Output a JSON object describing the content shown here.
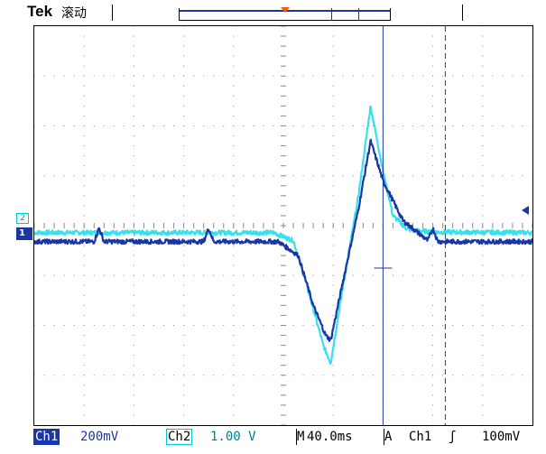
{
  "header": {
    "brand": "Tek",
    "mode": "滚动"
  },
  "status_bar": {
    "ch1_label": "Ch1",
    "ch1_scale": "200mV",
    "ch2_label": "Ch2",
    "ch2_scale": "1.00 V",
    "timebase_prefix": "M",
    "timebase": "40.0ms",
    "trigger_prefix": "A",
    "trigger_source": "Ch1",
    "trigger_slope": "ʃ",
    "trigger_level": "100mV"
  },
  "markers": {
    "ch1": "1",
    "ch2": "2"
  },
  "colors": {
    "ch1": "#1a35a6",
    "ch2": "#35e1ee",
    "trigger_pos": "#ff5a00",
    "grid": "#8c8c8c"
  },
  "chart_data": {
    "type": "line",
    "xlabel": "",
    "ylabel": "",
    "grid": true,
    "x_divisions": 10,
    "y_divisions": 8,
    "x_unit": "div",
    "y_unit": "div",
    "x_range": [
      -5,
      5
    ],
    "y_range": [
      -4,
      4
    ],
    "series": [
      {
        "name": "Ch2",
        "x": [
          -5,
          -3.6,
          -3.5,
          -3.4,
          -0.2,
          0.2,
          0.5,
          0.8,
          0.95,
          1.2,
          1.5,
          1.75,
          2.0,
          2.2,
          2.5,
          3.0,
          5
        ],
        "y": [
          -0.14,
          -0.14,
          -0.14,
          -0.14,
          -0.14,
          -0.3,
          -1.3,
          -2.4,
          -2.75,
          -1.2,
          0.55,
          2.4,
          1.1,
          0.2,
          -0.08,
          -0.13,
          -0.14
        ]
      },
      {
        "name": "Ch1",
        "x": [
          -5,
          -3.8,
          -3.7,
          -3.6,
          -1.6,
          -1.5,
          -1.4,
          -0.1,
          0.3,
          0.6,
          0.85,
          0.95,
          1.2,
          1.5,
          1.75,
          2.0,
          2.4,
          2.9,
          3.0,
          3.1,
          5
        ],
        "y": [
          -0.32,
          -0.32,
          -0.05,
          -0.32,
          -0.32,
          -0.05,
          -0.32,
          -0.32,
          -0.6,
          -1.6,
          -2.2,
          -2.3,
          -1.1,
          0.3,
          1.7,
          0.9,
          0.1,
          -0.3,
          -0.05,
          -0.32,
          -0.32
        ]
      }
    ],
    "cursors": {
      "vertical_solid_div": 2.0,
      "vertical_dashed_div": 3.25,
      "horizontal_marker_div": -0.85
    }
  }
}
